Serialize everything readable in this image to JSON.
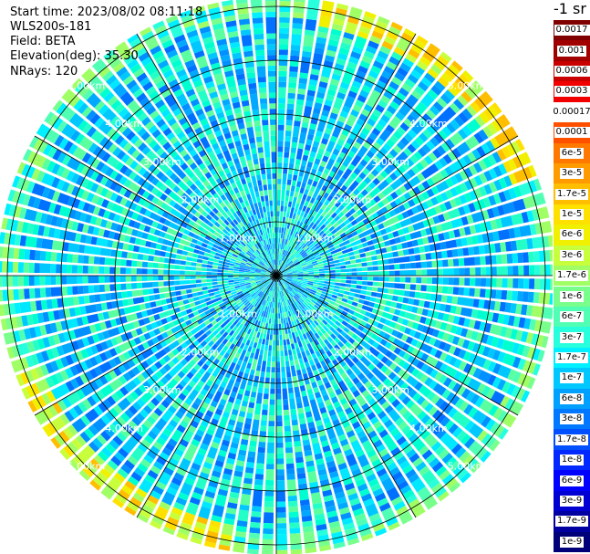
{
  "info": {
    "start_time": "Start time: 2023/08/02 08:11:18",
    "device": "WLS200s-181",
    "field": "Field: BETA",
    "elevation": "Elevation(deg): 35.30",
    "nrays": "NRays: 120"
  },
  "colorbar": {
    "unit": "-1 sr",
    "labels": [
      "0.0017",
      "0.001",
      "0.0006",
      "0.0003",
      "0.00017",
      "0.0001",
      "6e-5",
      "3e-5",
      "1.7e-5",
      "1e-5",
      "6e-6",
      "3e-6",
      "1.7e-6",
      "1e-6",
      "6e-7",
      "3e-7",
      "1.7e-7",
      "1e-7",
      "6e-8",
      "3e-8",
      "1.7e-8",
      "1e-8",
      "6e-9",
      "3e-9",
      "1.7e-9",
      "1e-9"
    ],
    "colors": [
      "#800000",
      "#a00000",
      "#c80000",
      "#f00000",
      "#ffffff",
      "#ff5000",
      "#ff7800",
      "#ff9b00",
      "#ffbe00",
      "#ffe100",
      "#f0f000",
      "#c8ff3c",
      "#a0ff64",
      "#78ff8c",
      "#50ffb4",
      "#28ffdc",
      "#00f0ff",
      "#00c8ff",
      "#00a0ff",
      "#0078ff",
      "#0050ff",
      "#0028ff",
      "#0000ff",
      "#0000d2",
      "#0000a0",
      "#000078"
    ]
  },
  "chart_data": {
    "type": "heatmap",
    "projection": "polar (PPI)",
    "rays": 120,
    "range_rings_km": [
      1,
      2,
      3,
      4,
      5
    ],
    "range_ring_labels": [
      "1.00km",
      "2.00km",
      "3.00km",
      "4.00km",
      "5.00km"
    ],
    "max_range_km": 5.2,
    "background_field_range": [
      "1e-8",
      "1e-7"
    ],
    "far_range_field_range": [
      "1e-6",
      "1e-5"
    ],
    "colorscale_min": "1e-9",
    "colorscale_max": "0.0017"
  }
}
